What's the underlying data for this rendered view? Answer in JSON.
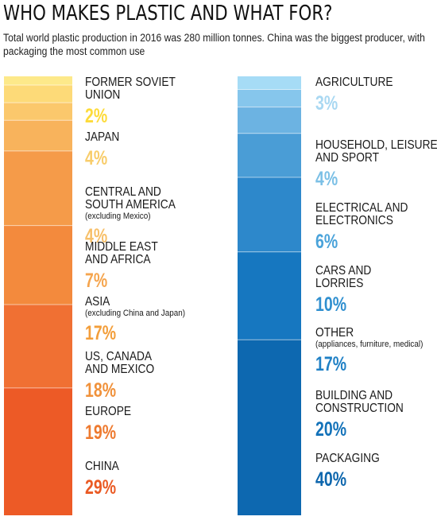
{
  "header": {
    "title": "WHO MAKES PLASTIC AND WHAT FOR?",
    "subtitle": "Total world plastic production in 2016 was 280 million tonnes. China was the biggest producer, with packaging the most common use"
  },
  "chart_data": [
    {
      "type": "bar",
      "subtype": "stacked-single-column",
      "title": "",
      "categories": [
        "Former Soviet Union",
        "Japan",
        "Central and South America",
        "Middle East and Africa",
        "Asia",
        "US, Canada and Mexico",
        "Europe",
        "China"
      ],
      "values": [
        2,
        4,
        4,
        7,
        17,
        18,
        19,
        29
      ],
      "labels": [
        {
          "name": "FORMER SOVIET UNION",
          "note": "",
          "value_label": "2%",
          "color": "#fddb3a"
        },
        {
          "name": "JAPAN",
          "note": "",
          "value_label": "4%",
          "color": "#f8cd6b"
        },
        {
          "name": "CENTRAL AND SOUTH AMERICA",
          "note": "(excluding Mexico)",
          "value_label": "4%",
          "color": "#f7c06a"
        },
        {
          "name": "MIDDLE EAST AND AFRICA",
          "note": "",
          "value_label": "7%",
          "color": "#f5a54e"
        },
        {
          "name": "ASIA",
          "note": "(excluding China and Japan)",
          "value_label": "17%",
          "color": "#f39e3a"
        },
        {
          "name": "US, CANADA AND MEXICO",
          "note": "",
          "value_label": "18%",
          "color": "#f0913a"
        },
        {
          "name": "EUROPE",
          "note": "",
          "value_label": "19%",
          "color": "#ee7a2f"
        },
        {
          "name": "CHINA",
          "note": "",
          "value_label": "29%",
          "color": "#ea5a24"
        }
      ],
      "segment_colors": [
        "#fde98a",
        "#fdda78",
        "#fbc86c",
        "#f8b35c",
        "#f59b49",
        "#f38a3d",
        "#f07033",
        "#ed5a26"
      ]
    },
    {
      "type": "bar",
      "subtype": "stacked-single-column",
      "title": "",
      "categories": [
        "Agriculture",
        "Household, leisure and sport",
        "Electrical and electronics",
        "Cars and lorries",
        "Other",
        "Building and construction",
        "Packaging"
      ],
      "values": [
        3,
        4,
        6,
        10,
        17,
        20,
        40
      ],
      "labels": [
        {
          "name": "AGRICULTURE",
          "note": "",
          "value_label": "3%",
          "color": "#a9d8f2"
        },
        {
          "name": "HOUSEHOLD, LEISURE AND SPORT",
          "note": "",
          "value_label": "4%",
          "color": "#7cc0e6"
        },
        {
          "name": "ELECTRICAL AND ELECTRONICS",
          "note": "",
          "value_label": "6%",
          "color": "#4aa3da"
        },
        {
          "name": "CARS AND LORRIES",
          "note": "",
          "value_label": "10%",
          "color": "#2f8fcf"
        },
        {
          "name": "OTHER",
          "note": "(appliances, furniture, medical)",
          "value_label": "17%",
          "color": "#1f80c5"
        },
        {
          "name": "BUILDING AND CONSTRUCTION",
          "note": "",
          "value_label": "20%",
          "color": "#1372b9"
        },
        {
          "name": "PACKAGING",
          "note": "",
          "value_label": "40%",
          "color": "#0d66ad"
        }
      ],
      "segment_colors": [
        "#a6dcf6",
        "#86c6ec",
        "#6cb3e2",
        "#4a9dd6",
        "#2d88cb",
        "#1677c0",
        "#0d68b0"
      ]
    }
  ]
}
